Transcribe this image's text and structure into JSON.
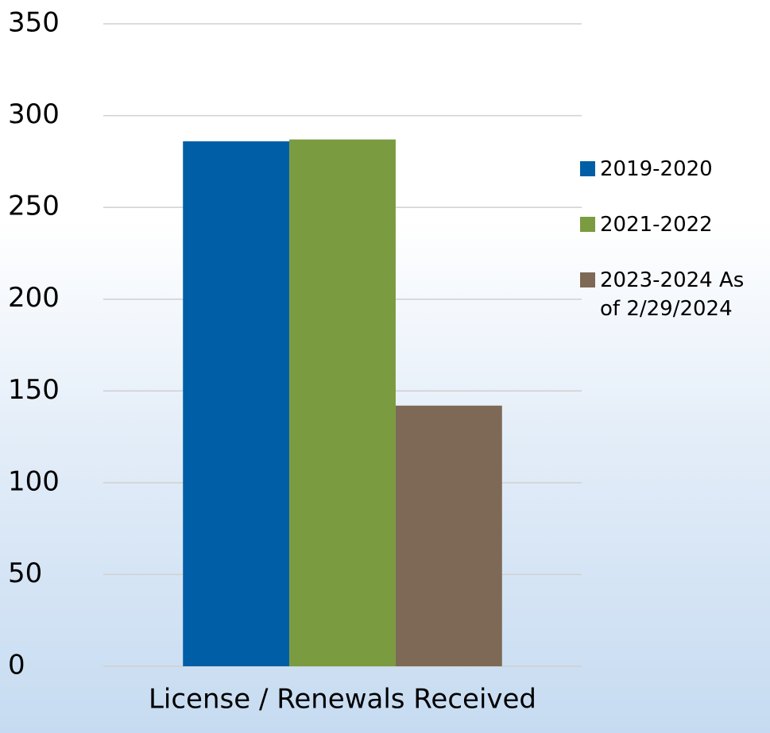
{
  "chart_data": {
    "type": "bar",
    "categories": [
      "License / Renewals Received"
    ],
    "series": [
      {
        "name": "2019-2020",
        "color": "#005ea6",
        "values": [
          286
        ]
      },
      {
        "name": "2021-2022",
        "color": "#7a9b3f",
        "values": [
          287
        ]
      },
      {
        "name": "2023-2024 As of 2/29/2024",
        "color": "#7d6956",
        "values": [
          142
        ]
      }
    ],
    "ylim": [
      0,
      350
    ],
    "yticks": [
      0,
      50,
      100,
      150,
      200,
      250,
      300,
      350
    ],
    "grid": true,
    "legend": "right"
  }
}
